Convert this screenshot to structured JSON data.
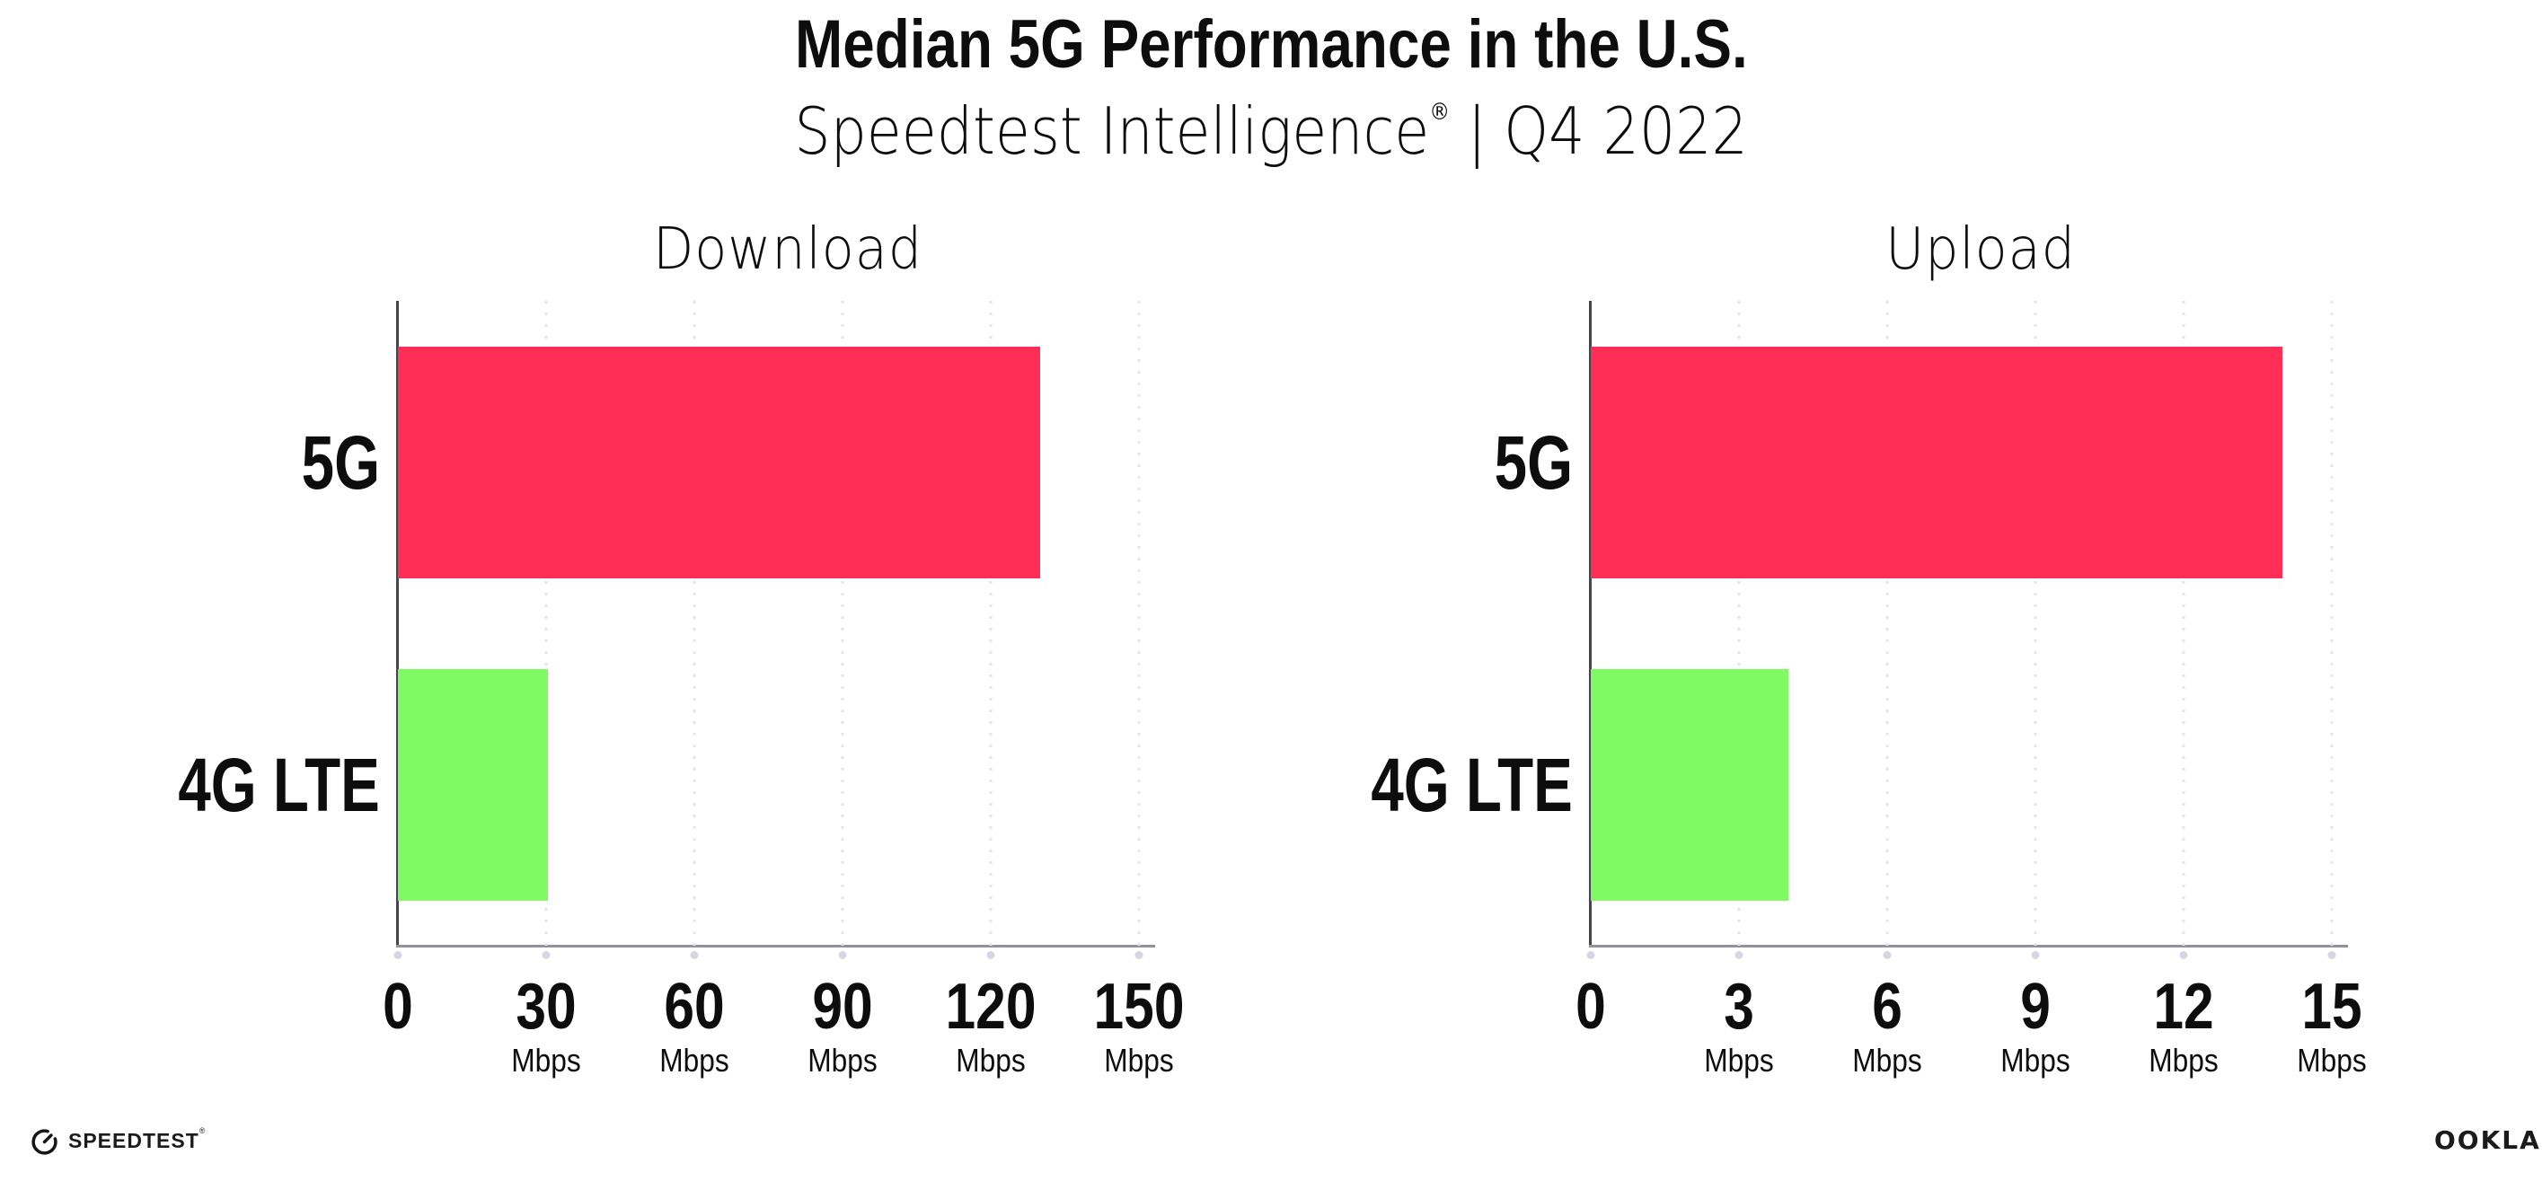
{
  "header": {
    "title": "Median 5G Performance in the U.S.",
    "subtitle": {
      "brand": "Speedtest Intelligence",
      "registered": "®",
      "separator": "|",
      "period": "Q4 2022"
    }
  },
  "chart_data": [
    {
      "type": "bar",
      "orientation": "horizontal",
      "title": "Download",
      "categories": [
        "5G",
        "4G LTE"
      ],
      "values": [
        130,
        30.3
      ],
      "unit": "Mbps",
      "xlim": [
        0,
        150
      ],
      "xticks": [
        0,
        30,
        60,
        90,
        120,
        150
      ],
      "tick_unit": "Mbps",
      "bar_colors": [
        "#ff2e56",
        "#80fa62"
      ],
      "grid": "vertical-dotted",
      "legend": "none"
    },
    {
      "type": "bar",
      "orientation": "horizontal",
      "title": "Upload",
      "categories": [
        "5G",
        "4G LTE"
      ],
      "values": [
        14,
        4
      ],
      "unit": "Mbps",
      "xlim": [
        0,
        15
      ],
      "xticks": [
        0,
        3,
        6,
        9,
        12,
        15
      ],
      "tick_unit": "Mbps",
      "bar_colors": [
        "#ff2e56",
        "#80fa62"
      ],
      "grid": "vertical-dotted",
      "legend": "none"
    }
  ],
  "colors": {
    "bar_5g": "#ff2e56",
    "bar_4g_lte": "#80fa62",
    "x_axis_line": "#92929b",
    "y_axis_line": "#45454d",
    "gridline": "#e4e4ee",
    "text": "#0d0d0d",
    "background": "#ffffff"
  },
  "footer": {
    "speedtest": {
      "label": "SPEEDTEST",
      "registered": "®"
    },
    "ookla": {
      "label": "OOKLA",
      "registered": "®"
    }
  }
}
